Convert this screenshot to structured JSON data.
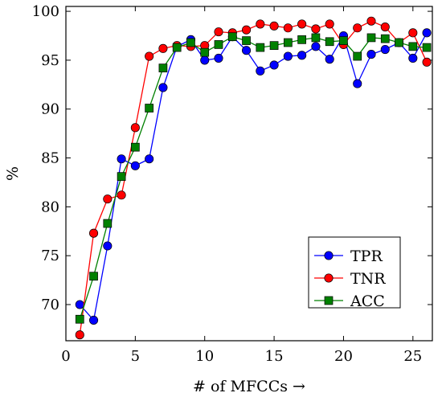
{
  "chart_data": {
    "type": "line",
    "title": "",
    "xlabel": "# of MFCCs →",
    "ylabel": "%",
    "xlim": [
      0,
      26.4
    ],
    "ylim": [
      66.3,
      100.5
    ],
    "xticks": [
      0,
      5,
      10,
      15,
      20,
      25
    ],
    "yticks": [
      70,
      75,
      80,
      85,
      90,
      95,
      100
    ],
    "grid": false,
    "legend_position": "lower-right",
    "x": [
      1,
      2,
      3,
      4,
      5,
      6,
      7,
      8,
      9,
      10,
      11,
      12,
      13,
      14,
      15,
      16,
      17,
      18,
      19,
      20,
      21,
      22,
      23,
      24,
      25,
      26
    ],
    "series": [
      {
        "name": "TPR",
        "color": "#0000ff",
        "marker": "circle",
        "values": [
          70.0,
          68.4,
          76.0,
          84.9,
          84.2,
          84.9,
          92.2,
          96.4,
          97.1,
          95.0,
          95.2,
          97.4,
          96.0,
          93.9,
          94.5,
          95.4,
          95.5,
          96.4,
          95.1,
          97.5,
          92.6,
          95.6,
          96.1,
          96.8,
          95.2,
          97.8
        ]
      },
      {
        "name": "TNR",
        "color": "#ff0000",
        "marker": "circle",
        "values": [
          66.9,
          77.3,
          80.8,
          81.2,
          88.1,
          95.4,
          96.2,
          96.5,
          96.4,
          96.5,
          97.9,
          97.8,
          98.1,
          98.7,
          98.5,
          98.3,
          98.7,
          98.2,
          98.7,
          96.6,
          98.3,
          99.0,
          98.4,
          96.8,
          97.8,
          94.8
        ]
      },
      {
        "name": "ACC",
        "color": "#008000",
        "marker": "square",
        "values": [
          68.5,
          72.9,
          78.3,
          83.1,
          86.1,
          90.1,
          94.2,
          96.3,
          96.8,
          95.8,
          96.6,
          97.4,
          97.0,
          96.3,
          96.5,
          96.8,
          97.1,
          97.3,
          96.9,
          97.0,
          95.4,
          97.3,
          97.2,
          96.8,
          96.4,
          96.3
        ]
      }
    ]
  }
}
